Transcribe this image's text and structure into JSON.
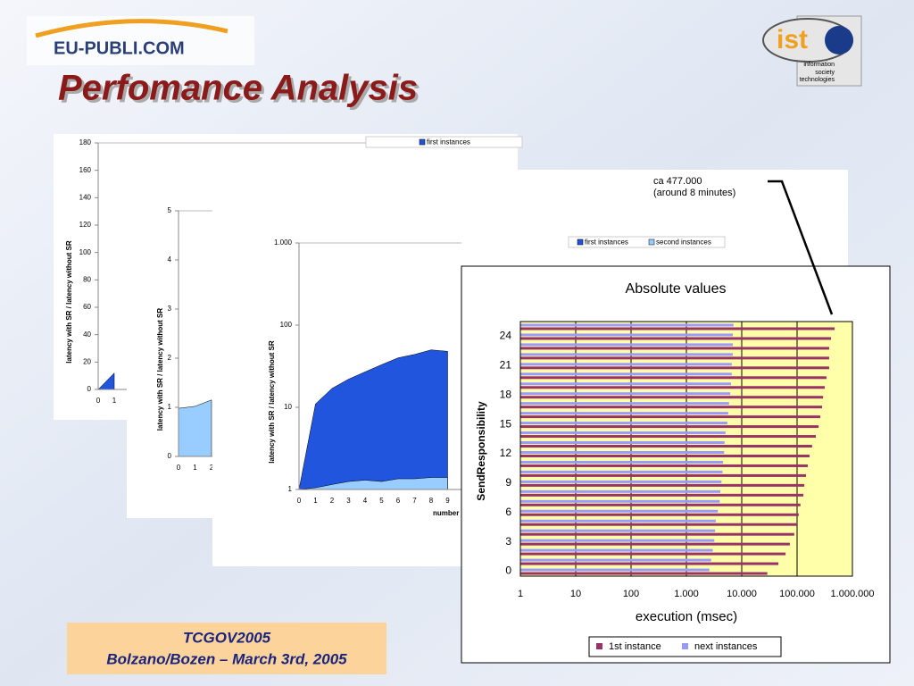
{
  "slide": {
    "title": "Perfomance Analysis",
    "logo_left": "EU-PUBLI.COM",
    "logo_right": "ist",
    "logo_right_lines": [
      "information",
      "society",
      "technologies"
    ]
  },
  "footer": {
    "lines": [
      "TCGOV2005",
      "Bolzano/Bozen – March 3rd, 2005"
    ]
  },
  "chart_data": [
    {
      "type": "area",
      "ylabel": "latency with SR / latency without SR",
      "categories": [
        0,
        1
      ],
      "ylim": [
        0,
        180
      ],
      "yticks": [
        0,
        20,
        40,
        60,
        80,
        100,
        120,
        140,
        160,
        180
      ],
      "series": [
        {
          "name": "first instances",
          "color": "#2255dd",
          "values": [
            0,
            12
          ]
        }
      ]
    },
    {
      "type": "area",
      "ylabel": "latency with SR / latency without SR",
      "categories": [
        0,
        1,
        2
      ],
      "ylim": [
        0,
        5
      ],
      "yticks": [
        0,
        1,
        2,
        3,
        4,
        5
      ],
      "series": [
        {
          "color": "#99ccff",
          "values": [
            0.98,
            1.02,
            1.15
          ]
        }
      ]
    },
    {
      "type": "area",
      "ylabel": "latency with SR / latency without SR",
      "xlabel": "number",
      "log_y": true,
      "categories": [
        0,
        1,
        2,
        3,
        4,
        5,
        6,
        7,
        8,
        9
      ],
      "ylim": [
        1,
        1000
      ],
      "yticks": [
        1,
        10,
        100,
        {
          "value": 1000,
          "label": "1.000"
        }
      ],
      "series": [
        {
          "name": "first instances",
          "color": "#2255dd",
          "values": [
            1,
            11,
            17,
            22,
            27,
            33,
            40,
            44,
            50,
            48
          ]
        },
        {
          "name": "second instances",
          "color": "#99ccff",
          "values": [
            1,
            1.05,
            1.15,
            1.25,
            1.3,
            1.25,
            1.35,
            1.35,
            1.4,
            1.4
          ]
        }
      ]
    },
    {
      "type": "hbar",
      "title": "Absolute values",
      "xlabel": "execution (msec)",
      "ylabel": "SendResponsibility",
      "log_x": true,
      "grid": true,
      "plot_color": "#ffffaa",
      "annotation": [
        "ca 477.000",
        "(around 8 minutes)"
      ],
      "categories": [
        0,
        null,
        null,
        3,
        null,
        null,
        6,
        null,
        null,
        9,
        null,
        null,
        12,
        null,
        null,
        15,
        null,
        null,
        18,
        null,
        null,
        21,
        null,
        null,
        24,
        null
      ],
      "xlim": [
        1,
        1000000
      ],
      "xticks": [
        1,
        10,
        100,
        {
          "value": 1000,
          "label": "1.000"
        },
        {
          "value": 10000,
          "label": "10.000"
        },
        {
          "value": 100000,
          "label": "100.000"
        },
        {
          "value": 1000000,
          "label": "1.000.000"
        }
      ],
      "series": [
        {
          "name": "1st instance",
          "color": "#993366",
          "values": [
            29000,
            46000,
            62000,
            74000,
            89000,
            100000,
            107000,
            115000,
            130000,
            135000,
            145000,
            156000,
            168000,
            187000,
            218000,
            245000,
            263000,
            283000,
            295000,
            316000,
            340000,
            380000,
            380000,
            380000,
            410000,
            477000
          ]
        },
        {
          "name": "next instances",
          "color": "#9999ff",
          "values": [
            2600,
            2800,
            3000,
            3200,
            3300,
            3400,
            3700,
            4000,
            4100,
            4300,
            4500,
            4600,
            4800,
            4900,
            5100,
            5500,
            5700,
            5900,
            6200,
            6400,
            6600,
            6600,
            6900,
            6900,
            6900,
            7100
          ]
        }
      ]
    }
  ]
}
